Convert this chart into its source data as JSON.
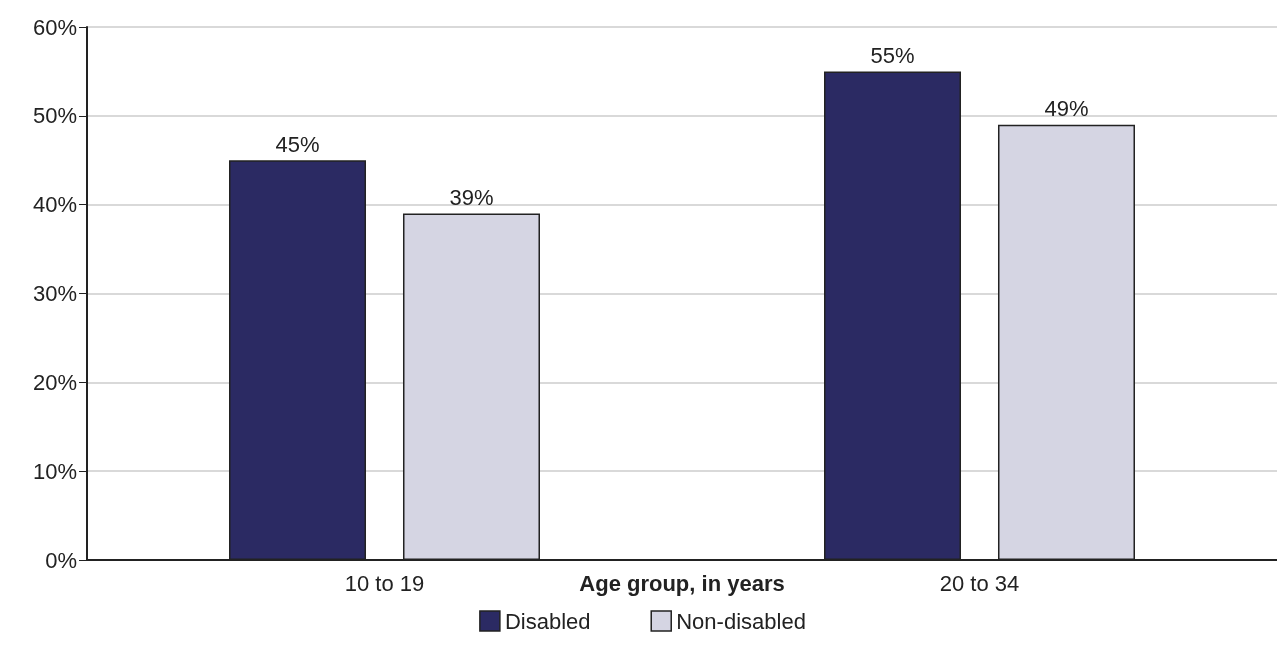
{
  "chart_data": {
    "type": "bar",
    "xlabel": "Age group, in years",
    "categories": [
      "10 to 19",
      "20 to 34"
    ],
    "series": [
      {
        "name": "Disabled",
        "color": "#2b2a63",
        "values": [
          45,
          55
        ],
        "value_labels": [
          "45%",
          "55%"
        ]
      },
      {
        "name": "Non-disabled",
        "color": "#d5d5e3",
        "values": [
          39,
          49
        ],
        "value_labels": [
          "39%",
          "49%"
        ]
      }
    ],
    "ylim": [
      0,
      60
    ],
    "yticks": [
      {
        "value": 0,
        "label": "0%"
      },
      {
        "value": 10,
        "label": "10%"
      },
      {
        "value": 20,
        "label": "20%"
      },
      {
        "value": 30,
        "label": "30%"
      },
      {
        "value": 40,
        "label": "40%"
      },
      {
        "value": 50,
        "label": "50%"
      },
      {
        "value": 60,
        "label": "60%"
      }
    ],
    "grid": "y",
    "legend": "bottom"
  }
}
